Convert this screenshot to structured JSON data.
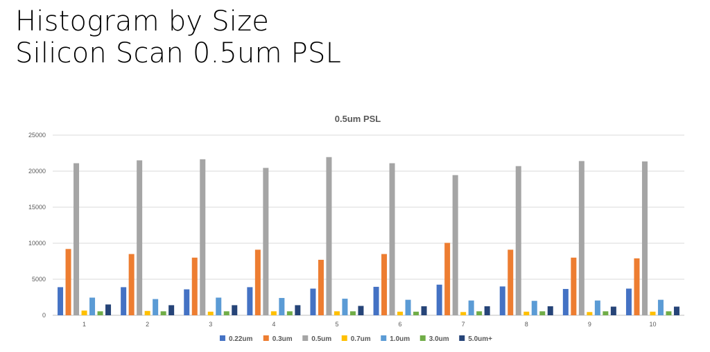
{
  "slide": {
    "title_line1": "Histogram by Size",
    "title_line2": "Silicon Scan 0.5um PSL"
  },
  "chart_data": {
    "type": "bar",
    "title": "0.5um PSL",
    "xlabel": "",
    "ylabel": "",
    "categories": [
      "1",
      "2",
      "3",
      "4",
      "5",
      "6",
      "7",
      "8",
      "9",
      "10"
    ],
    "ylim": [
      0,
      25000
    ],
    "yticks": [
      0,
      5000,
      10000,
      15000,
      20000,
      25000
    ],
    "grid": true,
    "legend_position": "bottom",
    "series": [
      {
        "name": "0.22um",
        "color": "#4472C4",
        "values": [
          3900,
          3900,
          3600,
          3900,
          3700,
          3950,
          4250,
          4000,
          3650,
          3700
        ]
      },
      {
        "name": "0.3um",
        "color": "#ED7D31",
        "values": [
          9200,
          8500,
          8000,
          9100,
          7700,
          8500,
          10050,
          9100,
          8000,
          7900
        ]
      },
      {
        "name": "0.5um",
        "color": "#A5A5A5",
        "values": [
          21100,
          21500,
          21650,
          20450,
          21950,
          21100,
          19450,
          20700,
          21400,
          21350
        ]
      },
      {
        "name": "0.7um",
        "color": "#FFC000",
        "values": [
          650,
          600,
          500,
          550,
          550,
          500,
          450,
          500,
          450,
          500
        ]
      },
      {
        "name": "1.0um",
        "color": "#5B9BD5",
        "values": [
          2450,
          2250,
          2450,
          2400,
          2300,
          2150,
          2050,
          2000,
          2050,
          2150
        ]
      },
      {
        "name": "3.0um",
        "color": "#70AD47",
        "values": [
          550,
          550,
          550,
          550,
          550,
          500,
          550,
          550,
          550,
          550
        ]
      },
      {
        "name": "5.0um+",
        "color": "#264478",
        "values": [
          1500,
          1400,
          1400,
          1400,
          1300,
          1250,
          1250,
          1250,
          1200,
          1200
        ]
      }
    ]
  }
}
